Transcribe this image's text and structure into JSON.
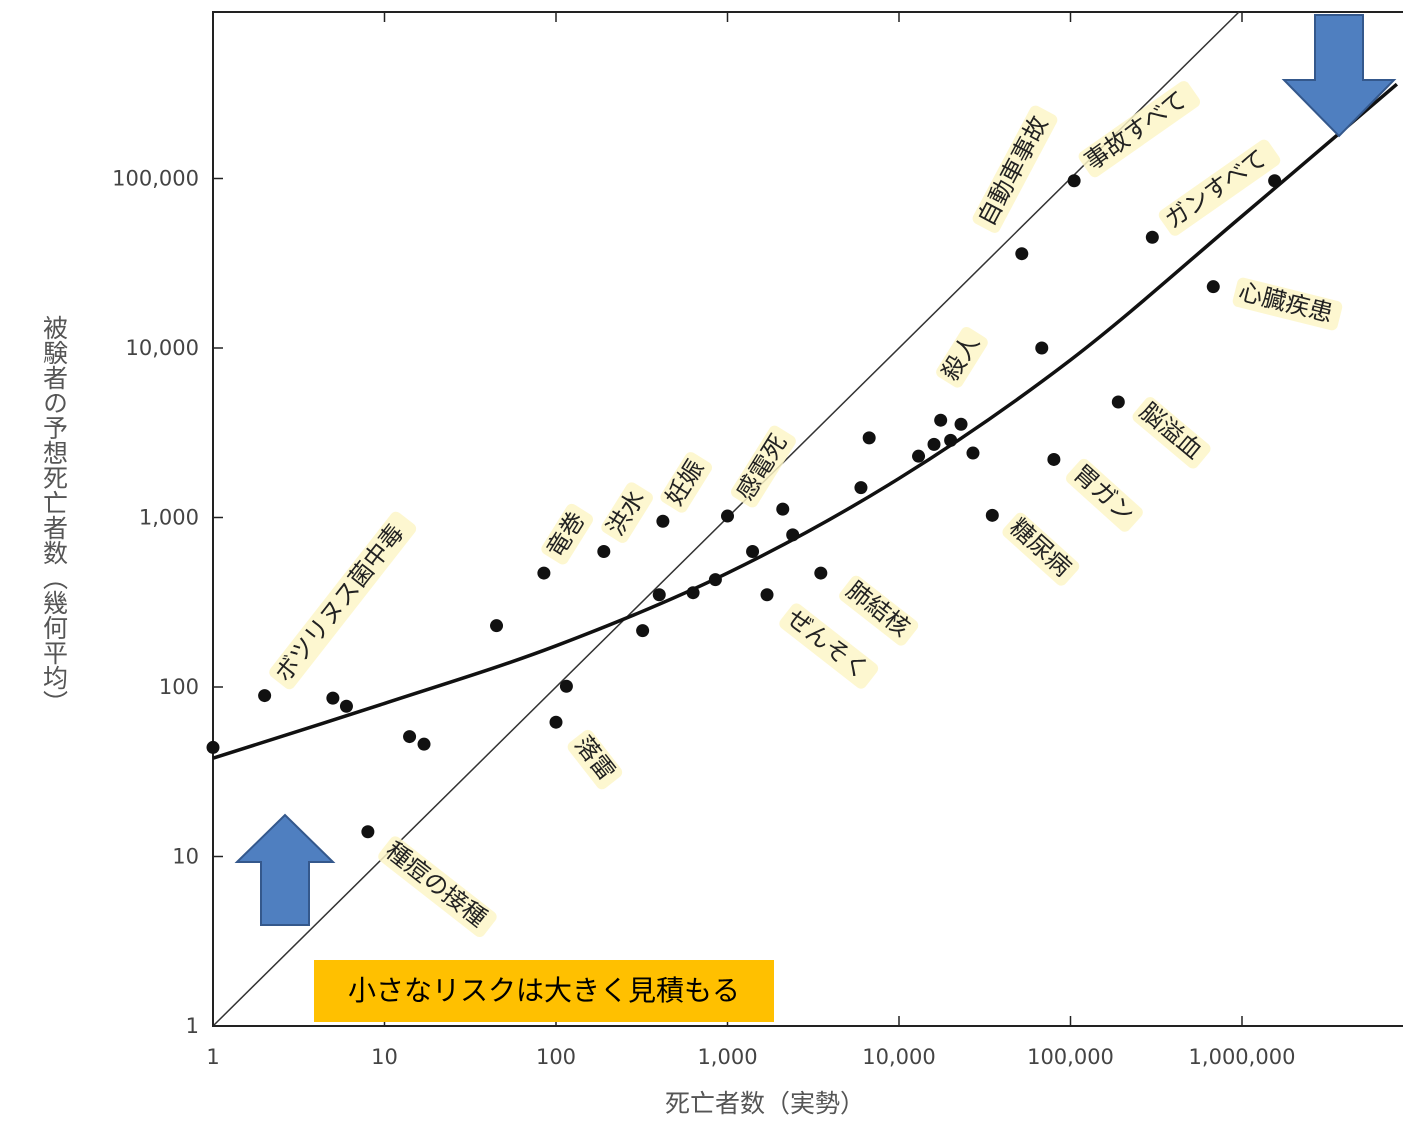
{
  "chart_data": {
    "type": "scatter",
    "scale": "log-log",
    "xlabel": "死亡者数（実勢）",
    "ylabel": "被験者の予想死亡者数（幾何平均）",
    "x_ticks": [
      {
        "value": 1,
        "label": "1"
      },
      {
        "value": 10,
        "label": "10"
      },
      {
        "value": 100,
        "label": "100"
      },
      {
        "value": 1000,
        "label": "1,000"
      },
      {
        "value": 10000,
        "label": "10,000"
      },
      {
        "value": 100000,
        "label": "100,000"
      },
      {
        "value": 1000000,
        "label": "1,000,000"
      }
    ],
    "y_ticks": [
      {
        "value": 1,
        "label": "1"
      },
      {
        "value": 10,
        "label": "10"
      },
      {
        "value": 100,
        "label": "100"
      },
      {
        "value": 1000,
        "label": "1,000"
      },
      {
        "value": 10000,
        "label": "10,000"
      },
      {
        "value": 100000,
        "label": "100,000"
      }
    ],
    "xlim": [
      1,
      8000000
    ],
    "ylim": [
      1,
      1000000
    ],
    "points": [
      {
        "x": 1,
        "y": 44
      },
      {
        "x": 2,
        "y": 89,
        "label": "ボツリヌス菌中毒"
      },
      {
        "x": 5,
        "y": 86
      },
      {
        "x": 6,
        "y": 77
      },
      {
        "x": 8,
        "y": 14,
        "label": "種痘の接種"
      },
      {
        "x": 14,
        "y": 51
      },
      {
        "x": 17,
        "y": 46
      },
      {
        "x": 45,
        "y": 230
      },
      {
        "x": 85,
        "y": 470,
        "label": "竜巻"
      },
      {
        "x": 100,
        "y": 62,
        "label": "落雷"
      },
      {
        "x": 115,
        "y": 101
      },
      {
        "x": 190,
        "y": 630,
        "label": "洪水"
      },
      {
        "x": 320,
        "y": 215
      },
      {
        "x": 400,
        "y": 350
      },
      {
        "x": 420,
        "y": 950,
        "label": "妊娠"
      },
      {
        "x": 630,
        "y": 360
      },
      {
        "x": 850,
        "y": 430
      },
      {
        "x": 1000,
        "y": 1020,
        "label": "感電死"
      },
      {
        "x": 1400,
        "y": 630
      },
      {
        "x": 1700,
        "y": 350,
        "label": "ぜんそく"
      },
      {
        "x": 2100,
        "y": 1120
      },
      {
        "x": 2400,
        "y": 790
      },
      {
        "x": 3500,
        "y": 470,
        "label": "肺結核"
      },
      {
        "x": 6000,
        "y": 1500
      },
      {
        "x": 6700,
        "y": 2950
      },
      {
        "x": 13000,
        "y": 2300
      },
      {
        "x": 16000,
        "y": 2700
      },
      {
        "x": 17500,
        "y": 3750,
        "label": "殺人"
      },
      {
        "x": 20000,
        "y": 2850
      },
      {
        "x": 23000,
        "y": 3550
      },
      {
        "x": 27000,
        "y": 2400
      },
      {
        "x": 35000,
        "y": 1030,
        "label": "糖尿病"
      },
      {
        "x": 52000,
        "y": 36000,
        "label": "自動車事故"
      },
      {
        "x": 68000,
        "y": 10000
      },
      {
        "x": 80000,
        "y": 2200,
        "label": "胃ガン"
      },
      {
        "x": 105000,
        "y": 97000,
        "label": "事故すべて"
      },
      {
        "x": 190000,
        "y": 4800,
        "label": "脳溢血"
      },
      {
        "x": 300000,
        "y": 45000,
        "label": "ガンすべて"
      },
      {
        "x": 680000,
        "y": 23000,
        "label": "心臓疾患"
      },
      {
        "x": 1550000,
        "y": 97000
      }
    ],
    "reference_line": "y = x",
    "fit_curve": [
      {
        "x": 1,
        "y": 38
      },
      {
        "x": 10,
        "y": 80
      },
      {
        "x": 100,
        "y": 175
      },
      {
        "x": 1000,
        "y": 470
      },
      {
        "x": 10000,
        "y": 1700
      },
      {
        "x": 100000,
        "y": 8500
      },
      {
        "x": 1000000,
        "y": 60000
      },
      {
        "x": 8000000,
        "y": 360000
      }
    ]
  },
  "callout": "小さなリスクは大きく見積もる",
  "colors": {
    "arrow_fill": "#4f7fc0",
    "arrow_stroke": "#34588c",
    "callout_bg": "#ffc000",
    "label_highlight": "#fdf6c8"
  }
}
